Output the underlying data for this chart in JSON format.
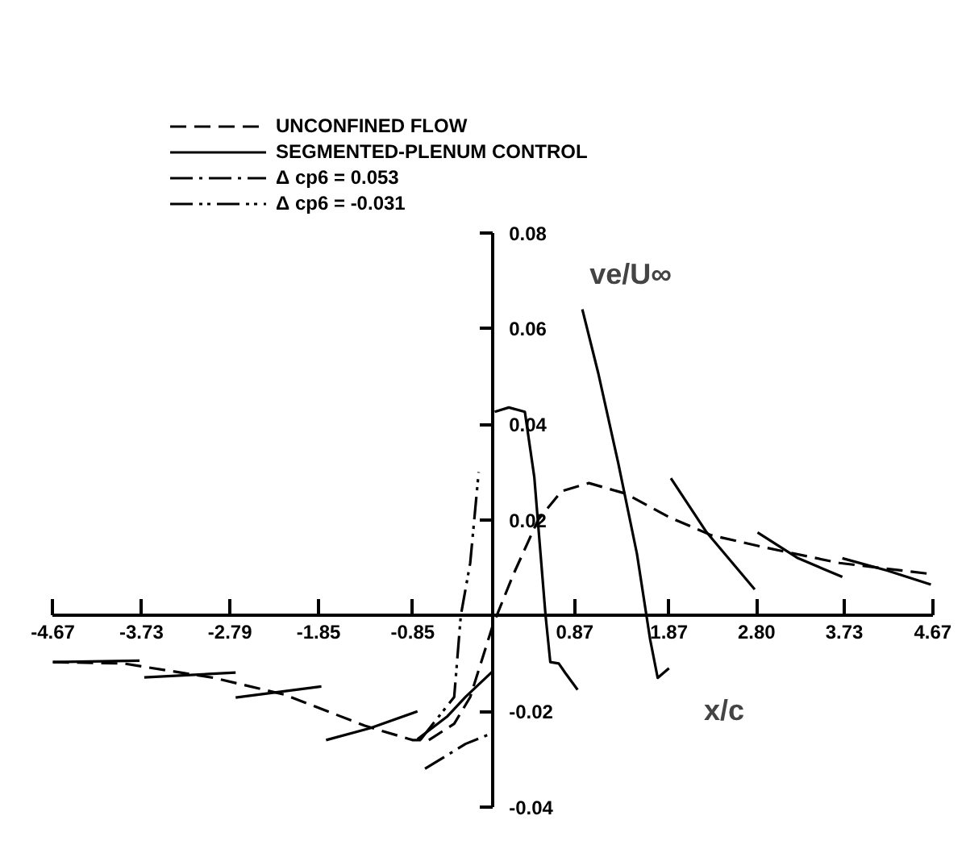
{
  "chart_data": {
    "type": "line",
    "xlabel": "x/c",
    "ylabel": "ve/U∞",
    "xlim": [
      -4.67,
      4.67
    ],
    "ylim": [
      -0.04,
      0.08
    ],
    "xticks": [
      -4.67,
      -3.73,
      -2.79,
      -1.85,
      -0.85,
      {
        "value": 0,
        "label": null
      },
      0.87,
      1.87,
      {
        "value": 2.8,
        "label": "2.80"
      },
      3.73,
      4.67
    ],
    "yticks": [
      -0.04,
      -0.02,
      {
        "value": 0,
        "label": null
      },
      0.02,
      0.04,
      0.06,
      0.08
    ],
    "grid": false,
    "legend": "top",
    "marker": "none",
    "series": [
      {
        "name": "UNCONFINED FLOW",
        "color": "#000000",
        "line_style": "dashed",
        "x": [
          -4.67,
          -3.92,
          -2.96,
          -2.21,
          -1.36,
          -0.85,
          -0.68,
          -0.41,
          -0.24,
          0,
          0.22,
          0.48,
          0.73,
          1.02,
          1.41,
          1.87,
          2.32,
          2.9,
          3.68,
          4.65
        ],
        "values": [
          -0.0097,
          -0.01,
          -0.013,
          -0.0165,
          -0.023,
          -0.026,
          -0.026,
          -0.0226,
          -0.017,
          -0.002,
          0.0087,
          0.02,
          0.026,
          0.0277,
          0.0255,
          0.0206,
          0.0168,
          0.0142,
          0.011,
          0.0087
        ]
      },
      {
        "name": "SEGMENTED-PLENUM CONTROL",
        "color": "#000000",
        "line_style": "solid",
        "x": [
          -4.67,
          -3.75,
          null,
          -3.7,
          -2.73,
          null,
          -2.73,
          -1.82,
          null,
          -1.77,
          -1.3,
          -0.8,
          null,
          -0.8,
          -0.48,
          -0.29,
          0,
          null,
          0.02,
          0.17,
          0.34,
          0.44,
          0.56,
          0.61,
          0.7,
          0.77,
          0.9,
          null,
          0.95,
          1.12,
          1.33,
          1.53,
          1.67,
          1.75,
          1.87,
          null,
          1.89,
          2.27,
          2.78,
          null,
          2.81,
          3.24,
          3.71,
          null,
          3.71,
          4.19,
          4.65
        ],
        "values": [
          -0.0097,
          -0.0094,
          null,
          -0.0129,
          -0.0119,
          null,
          -0.0171,
          -0.0148,
          null,
          -0.026,
          -0.0235,
          -0.02,
          null,
          -0.0258,
          -0.021,
          -0.017,
          -0.0116,
          null,
          0.0426,
          0.0435,
          0.0426,
          0.029,
          0,
          -0.0097,
          -0.01,
          -0.012,
          -0.0155,
          null,
          0.064,
          0.0506,
          0.032,
          0.0129,
          -0.005,
          -0.013,
          -0.011,
          null,
          0.0287,
          0.0174,
          0.0055,
          null,
          0.0174,
          0.012,
          0.0081,
          null,
          0.012,
          0.0094,
          0.0065
        ]
      },
      {
        "name": "Δ cp6 = 0.053",
        "color": "#000000",
        "line_style": "dashdot",
        "x": [
          -0.72,
          -0.29,
          0
        ],
        "values": [
          -0.032,
          -0.0268,
          -0.0245
        ]
      },
      {
        "name": "Δ cp6 = -0.031",
        "color": "#000000",
        "line_style": "dashdotdot",
        "x": [
          -0.77,
          -0.41,
          -0.34,
          -0.24,
          -0.15
        ],
        "values": [
          -0.026,
          -0.017,
          0,
          0.011,
          0.03
        ]
      }
    ]
  }
}
